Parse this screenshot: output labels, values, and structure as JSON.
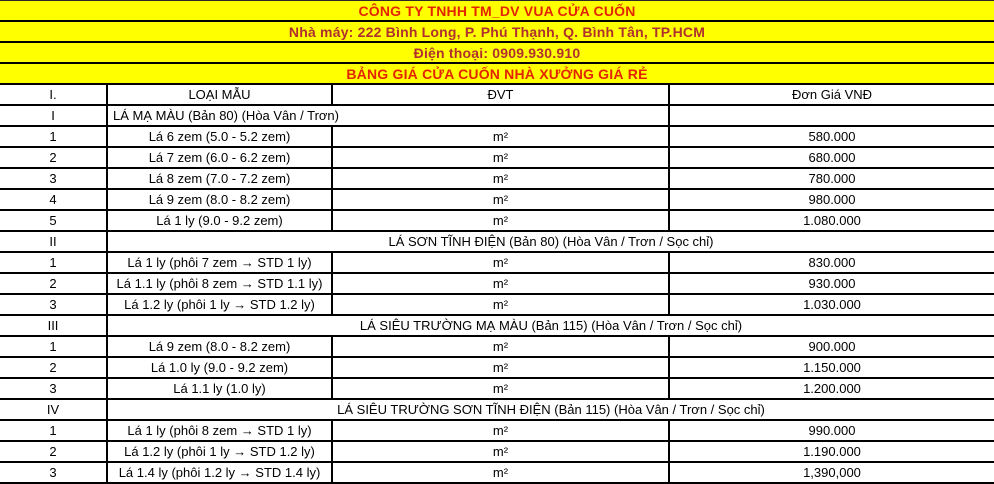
{
  "banner": {
    "company": "CÔNG TY TNHH TM_DV VUA CỬA CUỐN",
    "address": "Nhà máy: 222 Bình Long, P. Phú Thạnh, Q. Bình Tân, TP.HCM",
    "phone": "Điện thoại: 0909.930.910",
    "title": "BẢNG GIÁ CỬA CUỐN NHÀ XƯỞNG GIÁ RẺ",
    "background_color": "#FFFF00",
    "bright_red_color": "#E32400",
    "dark_red_color": "#B03030"
  },
  "table": {
    "headers": {
      "no": "I.",
      "type": "LOẠI MẪU",
      "unit": "ĐVT",
      "price": "Đơn Giá VNĐ"
    },
    "rows": [
      {
        "kind": "section-left",
        "no": "I",
        "label": "LÁ MẠ MÀU (Bản 80) (Hòa Vân / Trơn)"
      },
      {
        "kind": "item",
        "no": "1",
        "label": "Lá 6 zem (5.0 - 5.2 zem)",
        "unit": "m²",
        "price": "580.000"
      },
      {
        "kind": "item",
        "no": "2",
        "label": "Lá 7 zem (6.0 - 6.2 zem)",
        "unit": "m²",
        "price": "680.000"
      },
      {
        "kind": "item",
        "no": "3",
        "label": "Lá 8 zem (7.0 - 7.2 zem)",
        "unit": "m²",
        "price": "780.000"
      },
      {
        "kind": "item",
        "no": "4",
        "label": "Lá 9 zem (8.0 - 8.2 zem)",
        "unit": "m²",
        "price": "980.000"
      },
      {
        "kind": "item",
        "no": "5",
        "label": "Lá 1 ly (9.0 - 9.2 zem)",
        "unit": "m²",
        "price": "1.080.000"
      },
      {
        "kind": "section-center",
        "no": "II",
        "label": "LÁ SƠN TĨNH ĐIỆN (Bản 80) (Hòa Vân / Trơn / Sọc chỉ)"
      },
      {
        "kind": "item",
        "no": "1",
        "label": "Lá 1 ly (phôi 7 zem → STD 1 ly)",
        "unit": "m²",
        "price": "830.000"
      },
      {
        "kind": "item",
        "no": "2",
        "label": "Lá 1.1 ly (phôi 8 zem → STD 1.1 ly)",
        "unit": "m²",
        "price": "930.000"
      },
      {
        "kind": "item",
        "no": "3",
        "label": "Lá 1.2 ly (phôi 1 ly → STD 1.2 ly)",
        "unit": "m²",
        "price": "1.030.000"
      },
      {
        "kind": "section-center",
        "no": "III",
        "label": "LÁ SIÊU TRƯỜNG MẠ MÀU (Bản 115) (Hòa Vân / Trơn / Sọc chỉ)"
      },
      {
        "kind": "item",
        "no": "1",
        "label": "Lá 9 zem (8.0 - 8.2 zem)",
        "unit": "m²",
        "price": "900.000"
      },
      {
        "kind": "item",
        "no": "2",
        "label": "Lá 1.0 ly (9.0 - 9.2 zem)",
        "unit": "m²",
        "price": "1.150.000"
      },
      {
        "kind": "item",
        "no": "3",
        "label": "Lá 1.1 ly (1.0 ly)",
        "unit": "m²",
        "price": "1.200.000"
      },
      {
        "kind": "section-center",
        "no": "IV",
        "label": "LÁ SIÊU TRƯỜNG SƠN TĨNH ĐIỆN (Bản 115) (Hòa Vân / Trơn / Sọc chỉ)"
      },
      {
        "kind": "item",
        "no": "1",
        "label": "Lá 1 ly (phôi 8 zem → STD 1 ly)",
        "unit": "m²",
        "price": "990.000"
      },
      {
        "kind": "item",
        "no": "2",
        "label": "Lá 1.2 ly (phôi 1 ly → STD 1.2 ly)",
        "unit": "m²",
        "price": "1.190.000"
      },
      {
        "kind": "item",
        "no": "3",
        "label": "Lá 1.4 ly (phôi 1.2 ly → STD 1.4 ly)",
        "unit": "m²",
        "price": "1,390,000"
      }
    ]
  }
}
